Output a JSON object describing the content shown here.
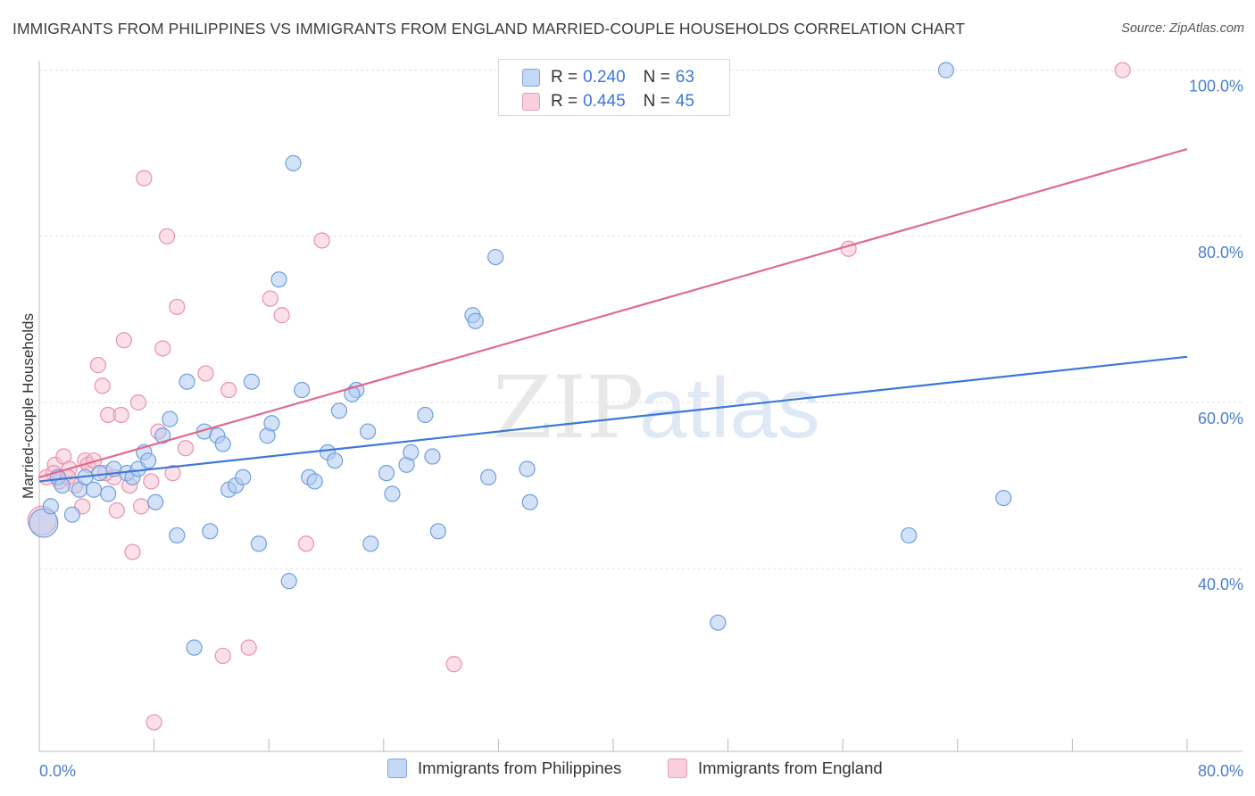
{
  "header": {
    "title": "IMMIGRANTS FROM PHILIPPINES VS IMMIGRANTS FROM ENGLAND MARRIED-COUPLE HOUSEHOLDS CORRELATION CHART",
    "source": "Source: ZipAtlas.com"
  },
  "legend": {
    "rows": [
      {
        "r_label": "R =",
        "r_value": "0.240",
        "n_label": "N =",
        "n_value": "63"
      },
      {
        "r_label": "R =",
        "r_value": "0.445",
        "n_label": "N =",
        "n_value": "45"
      }
    ]
  },
  "watermark": {
    "zip": "ZIP",
    "atlas": "atlas"
  },
  "colors": {
    "philippines_fill": "#aecbf0",
    "philippines_stroke": "#6f9fe0",
    "philippines_line": "#3c78d8",
    "england_fill": "#f7c1d2",
    "england_stroke": "#e891ad",
    "england_line": "#e06a92",
    "tick_text": "#4a7fd0"
  },
  "chart_data": {
    "type": "scatter",
    "title": "IMMIGRANTS FROM PHILIPPINES VS IMMIGRANTS FROM ENGLAND MARRIED-COUPLE HOUSEHOLDS CORRELATION CHART",
    "xlabel": "",
    "ylabel": "Married-couple Households",
    "xlim": [
      0,
      80
    ],
    "ylim": [
      18,
      102
    ],
    "x_tick_labels": [
      "0.0%",
      "80.0%"
    ],
    "y_ticks": [
      40,
      60,
      80,
      100
    ],
    "y_tick_labels": [
      "40.0%",
      "60.0%",
      "80.0%",
      "100.0%"
    ],
    "grid": true,
    "legend_position": "top-center",
    "series": [
      {
        "name": "Immigrants from Philippines",
        "r": 0.24,
        "n": 63,
        "trend": {
          "x": [
            0,
            80
          ],
          "y": [
            50.5,
            65.5
          ]
        },
        "points": [
          [
            0.3,
            45.5
          ],
          [
            0.8,
            47.5
          ],
          [
            1.3,
            51.0
          ],
          [
            1.6,
            50.0
          ],
          [
            2.3,
            46.5
          ],
          [
            2.8,
            49.5
          ],
          [
            3.2,
            51.0
          ],
          [
            3.8,
            49.5
          ],
          [
            4.2,
            51.5
          ],
          [
            4.8,
            49.0
          ],
          [
            5.2,
            52.0
          ],
          [
            6.1,
            51.5
          ],
          [
            6.5,
            51.0
          ],
          [
            6.9,
            52.0
          ],
          [
            7.3,
            54.0
          ],
          [
            7.6,
            53.0
          ],
          [
            8.1,
            48.0
          ],
          [
            8.6,
            56.0
          ],
          [
            9.1,
            58.0
          ],
          [
            9.6,
            44.0
          ],
          [
            10.3,
            62.5
          ],
          [
            10.8,
            30.5
          ],
          [
            11.5,
            56.5
          ],
          [
            11.9,
            44.5
          ],
          [
            12.4,
            56.0
          ],
          [
            12.8,
            55.0
          ],
          [
            13.2,
            49.5
          ],
          [
            13.7,
            50.0
          ],
          [
            14.2,
            51.0
          ],
          [
            14.8,
            62.5
          ],
          [
            15.3,
            43.0
          ],
          [
            15.9,
            56.0
          ],
          [
            16.2,
            57.5
          ],
          [
            16.7,
            74.8
          ],
          [
            17.4,
            38.5
          ],
          [
            17.7,
            88.8
          ],
          [
            18.3,
            61.5
          ],
          [
            18.8,
            51.0
          ],
          [
            19.2,
            50.5
          ],
          [
            20.1,
            54.0
          ],
          [
            20.6,
            53.0
          ],
          [
            20.9,
            59.0
          ],
          [
            22.1,
            61.5
          ],
          [
            22.9,
            56.5
          ],
          [
            23.1,
            43.0
          ],
          [
            24.2,
            51.5
          ],
          [
            24.6,
            49.0
          ],
          [
            25.6,
            52.5
          ],
          [
            25.9,
            54.0
          ],
          [
            26.9,
            58.5
          ],
          [
            27.4,
            53.5
          ],
          [
            27.8,
            44.5
          ],
          [
            30.2,
            70.5
          ],
          [
            30.4,
            69.8
          ],
          [
            31.3,
            51.0
          ],
          [
            31.8,
            77.5
          ],
          [
            34.0,
            52.0
          ],
          [
            34.2,
            48.0
          ],
          [
            47.3,
            33.5
          ],
          [
            60.6,
            44.0
          ],
          [
            63.2,
            100.0
          ],
          [
            67.2,
            48.5
          ],
          [
            21.8,
            61.0
          ]
        ]
      },
      {
        "name": "Immigrants from England",
        "r": 0.445,
        "n": 45,
        "trend": {
          "x": [
            0,
            80
          ],
          "y": [
            51.0,
            90.5
          ]
        },
        "points": [
          [
            0.2,
            45.8
          ],
          [
            0.5,
            51.0
          ],
          [
            1.1,
            52.5
          ],
          [
            1.4,
            50.5
          ],
          [
            1.7,
            53.5
          ],
          [
            2.1,
            52.0
          ],
          [
            2.5,
            50.0
          ],
          [
            3.0,
            47.5
          ],
          [
            3.2,
            53.0
          ],
          [
            3.4,
            52.5
          ],
          [
            3.8,
            53.0
          ],
          [
            4.1,
            64.5
          ],
          [
            4.4,
            62.0
          ],
          [
            4.8,
            58.5
          ],
          [
            5.2,
            51.0
          ],
          [
            5.4,
            47.0
          ],
          [
            5.7,
            58.5
          ],
          [
            5.9,
            67.5
          ],
          [
            6.3,
            50.0
          ],
          [
            6.5,
            42.0
          ],
          [
            6.9,
            60.0
          ],
          [
            7.1,
            47.5
          ],
          [
            7.3,
            87.0
          ],
          [
            7.8,
            50.5
          ],
          [
            8.0,
            21.5
          ],
          [
            8.3,
            56.5
          ],
          [
            8.6,
            66.5
          ],
          [
            8.9,
            80.0
          ],
          [
            9.3,
            51.5
          ],
          [
            9.6,
            71.5
          ],
          [
            10.2,
            54.5
          ],
          [
            11.6,
            63.5
          ],
          [
            12.8,
            29.5
          ],
          [
            13.2,
            61.5
          ],
          [
            14.6,
            30.5
          ],
          [
            16.1,
            72.5
          ],
          [
            16.9,
            70.5
          ],
          [
            18.6,
            43.0
          ],
          [
            19.7,
            79.5
          ],
          [
            28.9,
            28.5
          ],
          [
            56.4,
            78.5
          ],
          [
            75.5,
            100.0
          ],
          [
            2.0,
            51.0
          ],
          [
            4.6,
            51.5
          ],
          [
            1.0,
            51.5
          ]
        ]
      }
    ]
  },
  "bottom_legend": {
    "philippines": "Immigrants from Philippines",
    "england": "Immigrants from England"
  }
}
